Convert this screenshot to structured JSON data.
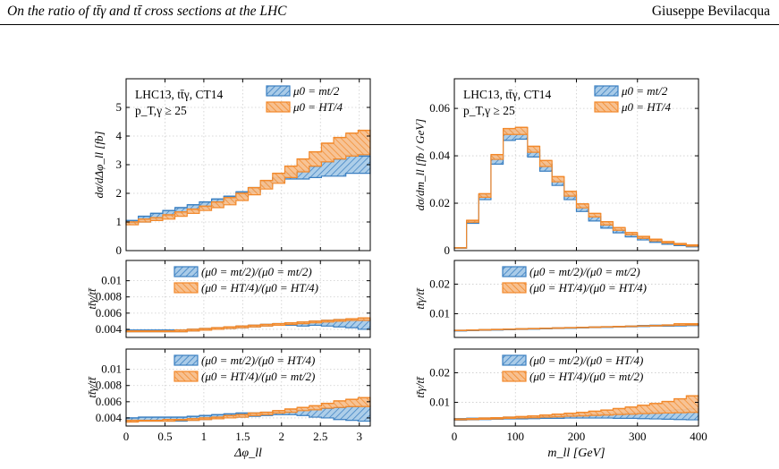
{
  "header": {
    "left": "On the ratio of tt̄γ and tt̄ cross sections at the LHC",
    "right": "Giuseppe Bevilacqua"
  },
  "colors": {
    "blue": "#3a7fc1",
    "blue_fill": "#a9cbe8",
    "orange": "#f2892b",
    "orange_fill": "#f7c08f",
    "grid": "#cccccc"
  },
  "chart_data": [
    {
      "type": "area",
      "panel": "left-main",
      "xlim": [
        0,
        3.1416
      ],
      "ylim": [
        0,
        6
      ],
      "xticks": [
        0,
        0.5,
        1,
        1.5,
        2,
        2.5,
        3
      ],
      "xticklabels": [
        "",
        "",
        "",
        "",
        "",
        "",
        ""
      ],
      "yticks": [
        0,
        1,
        2,
        3,
        4,
        5
      ],
      "yticklabels": [
        "0",
        "1",
        "2",
        "3",
        "4",
        "5"
      ],
      "ylabel": "dσ/dΔφ_ll [fb]",
      "text_lines": [
        "LHC13, tt̄γ, CT14",
        "p_T,γ ≥ 25"
      ],
      "legend": [
        "μ0 = mt/2",
        "μ0 = HT/4"
      ],
      "bins": 20,
      "series": [
        {
          "name": "μ0 = mt/2",
          "color": "blue",
          "lo": [
            0.95,
            1.0,
            1.1,
            1.2,
            1.3,
            1.4,
            1.5,
            1.6,
            1.75,
            1.9,
            2.05,
            2.25,
            2.4,
            2.5,
            2.5,
            2.55,
            2.6,
            2.6,
            2.7,
            2.7
          ],
          "hi": [
            1.05,
            1.2,
            1.3,
            1.4,
            1.5,
            1.6,
            1.7,
            1.8,
            1.9,
            2.05,
            2.2,
            2.4,
            2.55,
            2.7,
            2.8,
            2.95,
            3.1,
            3.2,
            3.35,
            3.3
          ]
        },
        {
          "name": "μ0 = HT/4",
          "color": "orange",
          "lo": [
            0.9,
            1.0,
            1.05,
            1.1,
            1.2,
            1.3,
            1.4,
            1.5,
            1.6,
            1.75,
            1.95,
            2.15,
            2.35,
            2.55,
            2.75,
            2.95,
            3.1,
            3.2,
            3.3,
            3.35
          ],
          "hi": [
            1.0,
            1.1,
            1.15,
            1.25,
            1.35,
            1.45,
            1.55,
            1.7,
            1.85,
            2.0,
            2.2,
            2.45,
            2.7,
            2.95,
            3.2,
            3.45,
            3.75,
            3.95,
            4.1,
            4.2
          ]
        }
      ]
    },
    {
      "type": "area",
      "panel": "left-ratio-1",
      "xlim": [
        0,
        3.1416
      ],
      "ylim": [
        0.003,
        0.0125
      ],
      "xticks": [
        0,
        0.5,
        1,
        1.5,
        2,
        2.5,
        3
      ],
      "xticklabels": [
        "",
        "",
        "",
        "",
        "",
        "",
        ""
      ],
      "yticks": [
        0.004,
        0.006,
        0.008,
        0.01
      ],
      "yticklabels": [
        "0.004",
        "0.006",
        "0.008",
        "0.01"
      ],
      "ylabel": "tt̄γ/tt̄",
      "legend": [
        "(μ0 = mt/2)/(μ0 = mt/2)",
        "(μ0 = HT/4)/(μ0 = HT/4)"
      ],
      "bins": 20,
      "series": [
        {
          "name": "(μ0 = mt/2)/(μ0 = mt/2)",
          "color": "blue",
          "lo": [
            0.0037,
            0.0037,
            0.0037,
            0.0037,
            0.0037,
            0.0038,
            0.0039,
            0.004,
            0.0041,
            0.0042,
            0.0043,
            0.0044,
            0.0045,
            0.0045,
            0.0044,
            0.0045,
            0.0044,
            0.0043,
            0.0042,
            0.004
          ],
          "hi": [
            0.0039,
            0.0039,
            0.0039,
            0.0039,
            0.0039,
            0.004,
            0.0041,
            0.0042,
            0.0043,
            0.0044,
            0.0045,
            0.0046,
            0.0047,
            0.0048,
            0.0049,
            0.005,
            0.0051,
            0.0052,
            0.0052,
            0.0052
          ]
        },
        {
          "name": "(μ0 = HT/4)/(μ0 = HT/4)",
          "color": "orange",
          "lo": [
            0.0037,
            0.0037,
            0.0037,
            0.0037,
            0.0037,
            0.0038,
            0.0039,
            0.004,
            0.0041,
            0.0042,
            0.0043,
            0.0044,
            0.0045,
            0.0046,
            0.0047,
            0.0048,
            0.0049,
            0.005,
            0.0051,
            0.0051
          ],
          "hi": [
            0.0038,
            0.0038,
            0.0038,
            0.0038,
            0.0039,
            0.004,
            0.0041,
            0.0042,
            0.0043,
            0.0044,
            0.0045,
            0.0046,
            0.0047,
            0.0048,
            0.0049,
            0.005,
            0.0051,
            0.0052,
            0.0053,
            0.0054
          ]
        }
      ]
    },
    {
      "type": "area",
      "panel": "left-ratio-2",
      "xlim": [
        0,
        3.1416
      ],
      "ylim": [
        0.003,
        0.0125
      ],
      "xticks": [
        0,
        0.5,
        1,
        1.5,
        2,
        2.5,
        3
      ],
      "xticklabels": [
        "0",
        "0.5",
        "1",
        "1.5",
        "2",
        "2.5",
        "3"
      ],
      "yticks": [
        0.004,
        0.006,
        0.008,
        0.01
      ],
      "yticklabels": [
        "0.004",
        "0.006",
        "0.008",
        "0.01"
      ],
      "ylabel": "tt̄γ/tt̄",
      "xlabel": "Δφ_ll",
      "legend": [
        "(μ0 = mt/2)/(μ0 = HT/4)",
        "(μ0 = HT/4)/(μ0 = mt/2)"
      ],
      "bins": 20,
      "series": [
        {
          "name": "(μ0 = mt/2)/(μ0 = HT/4)",
          "color": "blue",
          "lo": [
            0.0036,
            0.0036,
            0.0036,
            0.0036,
            0.0036,
            0.0037,
            0.0038,
            0.0039,
            0.004,
            0.0041,
            0.0042,
            0.0043,
            0.0044,
            0.0044,
            0.0043,
            0.0041,
            0.004,
            0.0038,
            0.0037,
            0.0036
          ],
          "hi": [
            0.004,
            0.0041,
            0.0041,
            0.0041,
            0.0041,
            0.0042,
            0.0043,
            0.0044,
            0.0045,
            0.0046,
            0.0046,
            0.0047,
            0.0048,
            0.0049,
            0.005,
            0.0051,
            0.0052,
            0.0053,
            0.0054,
            0.0055
          ]
        },
        {
          "name": "(μ0 = HT/4)/(μ0 = mt/2)",
          "color": "orange",
          "lo": [
            0.0035,
            0.0036,
            0.0036,
            0.0036,
            0.0037,
            0.0037,
            0.0038,
            0.0039,
            0.004,
            0.0041,
            0.0043,
            0.0044,
            0.0046,
            0.0047,
            0.0049,
            0.005,
            0.0052,
            0.0053,
            0.0054,
            0.0054
          ],
          "hi": [
            0.0037,
            0.0037,
            0.0037,
            0.0038,
            0.0038,
            0.0039,
            0.004,
            0.0041,
            0.0043,
            0.0044,
            0.0046,
            0.0047,
            0.0049,
            0.0051,
            0.0053,
            0.0055,
            0.0058,
            0.0061,
            0.0063,
            0.0065
          ]
        }
      ]
    },
    {
      "type": "area",
      "panel": "right-main",
      "xlim": [
        0,
        400
      ],
      "ylim": [
        0,
        0.0725
      ],
      "xticks": [
        0,
        100,
        200,
        300,
        400
      ],
      "xticklabels": [
        "",
        "",
        "",
        "",
        ""
      ],
      "yticks": [
        0,
        0.02,
        0.04,
        0.06
      ],
      "yticklabels": [
        "0",
        "0.02",
        "0.04",
        "0.06"
      ],
      "ylabel": "dσ/dm_ll [fb / GeV]",
      "text_lines": [
        "LHC13, tt̄γ, CT14",
        "p_T,γ ≥ 25"
      ],
      "legend": [
        "μ0 = mt/2",
        "μ0 = HT/4"
      ],
      "bins": 20,
      "series": [
        {
          "name": "μ0 = mt/2",
          "color": "blue",
          "lo": [
            0.001,
            0.0115,
            0.0215,
            0.0365,
            0.0465,
            0.047,
            0.0395,
            0.0335,
            0.0275,
            0.0215,
            0.0165,
            0.0125,
            0.0095,
            0.0075,
            0.0058,
            0.0045,
            0.0035,
            0.0027,
            0.0021,
            0.0016
          ],
          "hi": [
            0.0012,
            0.0125,
            0.0235,
            0.0395,
            0.0505,
            0.0505,
            0.0425,
            0.0365,
            0.0295,
            0.0235,
            0.0185,
            0.0145,
            0.011,
            0.0088,
            0.0068,
            0.0053,
            0.0042,
            0.0033,
            0.0026,
            0.002
          ]
        },
        {
          "name": "μ0 = HT/4",
          "color": "orange",
          "lo": [
            0.0011,
            0.012,
            0.0225,
            0.0385,
            0.049,
            0.049,
            0.0415,
            0.0355,
            0.029,
            0.023,
            0.018,
            0.0142,
            0.0108,
            0.0086,
            0.0067,
            0.0052,
            0.0041,
            0.0032,
            0.0025,
            0.0019
          ],
          "hi": [
            0.0012,
            0.0128,
            0.024,
            0.0405,
            0.0515,
            0.052,
            0.044,
            0.038,
            0.0312,
            0.025,
            0.0197,
            0.0157,
            0.0122,
            0.0097,
            0.0076,
            0.006,
            0.0048,
            0.0038,
            0.003,
            0.0024
          ]
        }
      ]
    },
    {
      "type": "area",
      "panel": "right-ratio-1",
      "xlim": [
        0,
        400
      ],
      "ylim": [
        0.002,
        0.028
      ],
      "xticks": [
        0,
        100,
        200,
        300,
        400
      ],
      "xticklabels": [
        "",
        "",
        "",
        "",
        ""
      ],
      "yticks": [
        0.01,
        0.02
      ],
      "yticklabels": [
        "0.01",
        "0.02"
      ],
      "ylabel": "tt̄γ/tt̄",
      "legend": [
        "(μ0 = mt/2)/(μ0 = mt/2)",
        "(μ0 = HT/4)/(μ0 = HT/4)"
      ],
      "bins": 20,
      "series": [
        {
          "name": "(μ0 = mt/2)/(μ0 = mt/2)",
          "color": "blue",
          "lo": [
            0.0042,
            0.0043,
            0.0044,
            0.0045,
            0.0046,
            0.0047,
            0.0048,
            0.0049,
            0.005,
            0.0051,
            0.0052,
            0.0053,
            0.0054,
            0.0055,
            0.0056,
            0.0057,
            0.0058,
            0.0058,
            0.0059,
            0.006
          ],
          "hi": [
            0.0044,
            0.0045,
            0.0046,
            0.0047,
            0.0048,
            0.0049,
            0.005,
            0.0051,
            0.0052,
            0.0053,
            0.0054,
            0.0055,
            0.0056,
            0.0057,
            0.0058,
            0.006,
            0.0061,
            0.0062,
            0.0063,
            0.0064
          ]
        },
        {
          "name": "(μ0 = HT/4)/(μ0 = HT/4)",
          "color": "orange",
          "lo": [
            0.0043,
            0.0044,
            0.0045,
            0.0046,
            0.0047,
            0.0048,
            0.0049,
            0.005,
            0.0051,
            0.0052,
            0.0053,
            0.0054,
            0.0055,
            0.0056,
            0.0057,
            0.0058,
            0.0059,
            0.006,
            0.0061,
            0.0062
          ],
          "hi": [
            0.0044,
            0.0045,
            0.0046,
            0.0047,
            0.0048,
            0.0049,
            0.005,
            0.0051,
            0.0052,
            0.0053,
            0.0054,
            0.0055,
            0.0056,
            0.0057,
            0.0058,
            0.0059,
            0.006,
            0.0062,
            0.0066,
            0.0066
          ]
        }
      ]
    },
    {
      "type": "area",
      "panel": "right-ratio-2",
      "xlim": [
        0,
        400
      ],
      "ylim": [
        0.002,
        0.028
      ],
      "xticks": [
        0,
        100,
        200,
        300,
        400
      ],
      "xticklabels": [
        "0",
        "100",
        "200",
        "300",
        "400"
      ],
      "yticks": [
        0.01,
        0.02
      ],
      "yticklabels": [
        "0.01",
        "0.02"
      ],
      "ylabel": "tt̄γ/tt̄",
      "xlabel": "m_ll [GeV]",
      "legend": [
        "(μ0 = mt/2)/(μ0 = HT/4)",
        "(μ0 = HT/4)/(μ0 = mt/2)"
      ],
      "bins": 20,
      "series": [
        {
          "name": "(μ0 = mt/2)/(μ0 = HT/4)",
          "color": "blue",
          "lo": [
            0.004,
            0.0041,
            0.0042,
            0.0043,
            0.0044,
            0.0044,
            0.0045,
            0.0046,
            0.0046,
            0.0047,
            0.0047,
            0.0047,
            0.0047,
            0.0046,
            0.0046,
            0.0045,
            0.0044,
            0.0043,
            0.0042,
            0.0041
          ],
          "hi": [
            0.0045,
            0.0046,
            0.0047,
            0.0048,
            0.005,
            0.0051,
            0.0052,
            0.0054,
            0.0055,
            0.0057,
            0.0058,
            0.006,
            0.0062,
            0.0064,
            0.0066,
            0.0068,
            0.007,
            0.0072,
            0.0075,
            0.0078
          ]
        },
        {
          "name": "(μ0 = HT/4)/(μ0 = mt/2)",
          "color": "orange",
          "lo": [
            0.0041,
            0.0042,
            0.0043,
            0.0044,
            0.0046,
            0.0047,
            0.0048,
            0.005,
            0.0051,
            0.0053,
            0.0054,
            0.0056,
            0.0057,
            0.0059,
            0.006,
            0.0062,
            0.0063,
            0.0064,
            0.0065,
            0.0066
          ],
          "hi": [
            0.0044,
            0.0045,
            0.0047,
            0.0048,
            0.005,
            0.0052,
            0.0054,
            0.0057,
            0.006,
            0.0063,
            0.0066,
            0.007,
            0.0074,
            0.0079,
            0.0084,
            0.009,
            0.0096,
            0.0103,
            0.0112,
            0.0122
          ]
        }
      ]
    }
  ]
}
